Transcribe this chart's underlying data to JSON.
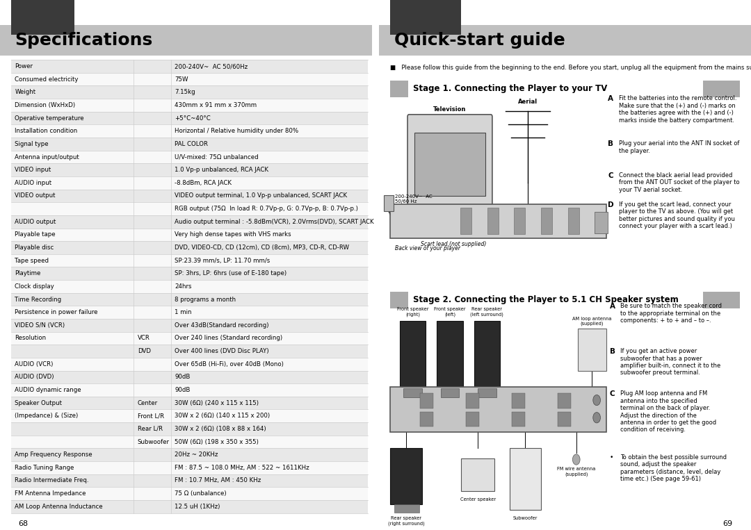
{
  "bg_color": "#ffffff",
  "dark_header_color": "#3a3a3a",
  "light_header_color": "#c0c0c0",
  "divider_color": "#cccccc",
  "table_row_even": "#e8e8e8",
  "table_row_odd": "#f8f8f8",
  "left_title": "Specifications",
  "right_title": "Quick-start guide",
  "stage1_title": "Stage 1. Connecting the Player to your TV",
  "stage2_title": "Stage 2. Connecting the Player to 5.1 CH Speaker system",
  "intro_text": "■   Please follow this guide from the beginning to the end. Before you start, unplug all the equipment from the mains supply.",
  "page_numbers": [
    "68",
    "69"
  ],
  "specs": [
    [
      "Power",
      "",
      "200-240V~  AC 50/60Hz"
    ],
    [
      "Consumed electricity",
      "",
      "75W"
    ],
    [
      "Weight",
      "",
      "7.15kg"
    ],
    [
      "Dimension (WxHxD)",
      "",
      "430mm x 91 mm x 370mm"
    ],
    [
      "Operative temperature",
      "",
      "+5°C~40°C"
    ],
    [
      "Installation condition",
      "",
      "Horizontal / Relative humidity under 80%"
    ],
    [
      "Signal type",
      "",
      "PAL COLOR"
    ],
    [
      "Antenna input/output",
      "",
      "U/V-mixed: 75Ω unbalanced"
    ],
    [
      "VIDEO input",
      "",
      "1.0 Vp-p unbalanced, RCA JACK"
    ],
    [
      "AUDIO input",
      "",
      "-8.8dBm, RCA JACK"
    ],
    [
      "VIDEO output",
      "",
      "VIDEO output terminal, 1.0 Vp-p unbalanced, SCART JACK"
    ],
    [
      "",
      "",
      "RGB output (75Ω  In load R: 0.7Vp-p, G: 0.7Vp-p, B: 0.7Vp-p.)"
    ],
    [
      "AUDIO output",
      "",
      "Audio output terminal : -5.8dBm(VCR), 2.0Vrms(DVD), SCART JACK"
    ],
    [
      "Playable tape",
      "",
      "Very high dense tapes with VHS marks"
    ],
    [
      "Playable disc",
      "",
      "DVD, VIDEO-CD, CD (12cm), CD (8cm), MP3, CD-R, CD-RW"
    ],
    [
      "Tape speed",
      "",
      "SP:23.39 mm/s, LP: 11.70 mm/s"
    ],
    [
      "Playtime",
      "",
      "SP: 3hrs, LP: 6hrs (use of E-180 tape)"
    ],
    [
      "Clock display",
      "",
      "24hrs"
    ],
    [
      "Time Recording",
      "",
      "8 programs a month"
    ],
    [
      "Persistence in power failure",
      "",
      "1 min"
    ],
    [
      "VIDEO S/N (VCR)",
      "",
      "Over 43dB(Standard recording)"
    ],
    [
      "Resolution",
      "VCR",
      "Over 240 lines (Standard recording)"
    ],
    [
      "",
      "DVD",
      "Over 400 lines (DVD Disc PLAY)"
    ],
    [
      "AUDIO (VCR)",
      "",
      "Over 65dB (Hi-Fi), over 40dB (Mono)"
    ],
    [
      "AUDIO (DVD)",
      "",
      "90dB"
    ],
    [
      "AUDIO dynamic range",
      "",
      "90dB"
    ],
    [
      "Speaker Output",
      "Center",
      "30W (6Ω) (240 x 115 x 115)"
    ],
    [
      "(Impedance) & (Size)",
      "Front L/R",
      "30W x 2 (6Ω) (140 x 115 x 200)"
    ],
    [
      "",
      "Rear L/R",
      "30W x 2 (6Ω) (108 x 88 x 164)"
    ],
    [
      "",
      "Subwoofer",
      "50W (6Ω) (198 x 350 x 355)"
    ],
    [
      "Amp Frequency Response",
      "",
      "20Hz ~ 20KHz"
    ],
    [
      "Radio Tuning Range",
      "",
      "FM : 87.5 ~ 108.0 MHz, AM : 522 ~ 1611KHz"
    ],
    [
      "Radio Intermediate Freq.",
      "",
      "FM : 10.7 MHz, AM : 450 KHz"
    ],
    [
      "FM Antenna Impedance",
      "",
      "75 Ω (unbalance)"
    ],
    [
      "AM Loop Antenna Inductance",
      "",
      "12.5 uH (1KHz)"
    ]
  ],
  "stage1_notes": [
    [
      "A",
      "Fit the batteries into the remote control.\nMake sure that the (+) and (-) marks on\nthe batteries agree with the (+) and (-)\nmarks inside the battery compartment."
    ],
    [
      "B",
      "Plug your aerial into the ANT IN socket of\nthe player."
    ],
    [
      "C",
      "Connect the black aerial lead provided\nfrom the ANT OUT socket of the player to\nyour TV aerial socket."
    ],
    [
      "D",
      "If you get the scart lead, connect your\nplayer to the TV as above. (You will get\nbetter pictures and sound quality if you\nconnect your player with a scart lead.)"
    ]
  ],
  "stage2_notes": [
    [
      "A",
      "Be sure to match the speaker cord\nto the appropriate terminal on the\ncomponents: + to + and – to –."
    ],
    [
      "B",
      "If you get an active power\nsubwoofer that has a power\namplifier built-in, connect it to the\nsubwoofer preout terminal."
    ],
    [
      "C",
      "Plug AM loop antenna and FM\nantenna into the specified\nterminal on the back of player.\nAdjust the direction of the\nantenna in order to get the good\ncondition of receiving."
    ],
    [
      "•",
      "To obtain the best possible surround\nsound, adjust the speaker\nparameters (distance, level, delay\ntime etc.) (See page 59-61)"
    ]
  ],
  "tv_label": "Television",
  "aerial_label": "Aerial",
  "power_label": "200-240V~  AC\n50/60 Hz",
  "scart_label": "Scart lead (not supplied)",
  "back_view_label": "Back view of your player",
  "speaker_labels": [
    "Front speaker\n(right)",
    "Front speaker\n(left)",
    "Rear speaker\n(left surround)"
  ],
  "am_antenna_label": "AM loop antenna\n(supplied)",
  "fm_antenna_label": "FM wire antenna\n(supplied)",
  "rear_speaker_label": "Rear speaker\n(right surround)",
  "center_label": "Center speaker",
  "subwoofer_label": "Subwoofer"
}
